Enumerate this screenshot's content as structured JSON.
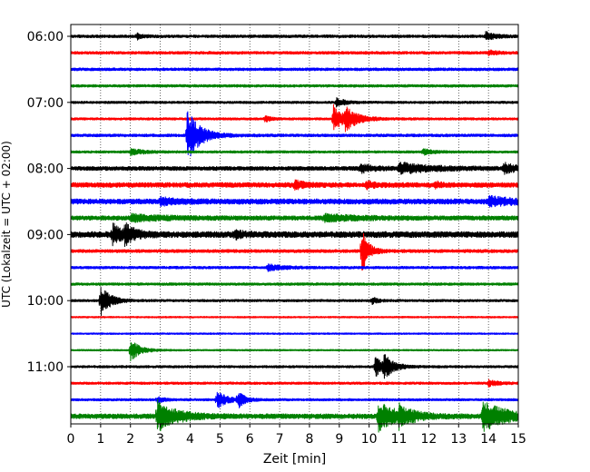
{
  "chart_data": {
    "type": "line",
    "title": "",
    "xlabel": "Zeit  [min]",
    "ylabel": "UTC (Lokalzeit = UTC + 02:00)",
    "xlim": [
      0,
      15
    ],
    "xticks": [
      "0",
      "1",
      "2",
      "3",
      "4",
      "5",
      "6",
      "7",
      "8",
      "9",
      "10",
      "11",
      "12",
      "13",
      "14",
      "15"
    ],
    "grid": "vertical-dotted",
    "row_interval_minutes": 15,
    "row_start": "06:00",
    "ytick_labels": [
      {
        "label": "06:00",
        "row": 0
      },
      {
        "label": "07:00",
        "row": 4
      },
      {
        "label": "08:00",
        "row": 8
      },
      {
        "label": "09:00",
        "row": 12
      },
      {
        "label": "10:00",
        "row": 16
      },
      {
        "label": "11:00",
        "row": 20
      }
    ],
    "row_colors": [
      "#000000",
      "#ff0000",
      "#0000ff",
      "#008000"
    ],
    "rows": [
      {
        "events": [
          {
            "t": 2.2,
            "amp": 0.3,
            "dur": 0.2
          },
          {
            "t": 13.9,
            "amp": 0.4,
            "dur": 0.3
          }
        ],
        "noise": 0.14
      },
      {
        "events": [
          {
            "t": 14.0,
            "amp": 0.2,
            "dur": 0.3
          }
        ],
        "noise": 0.14
      },
      {
        "events": [],
        "noise": 0.14
      },
      {
        "events": [],
        "noise": 0.13
      },
      {
        "events": [
          {
            "t": 8.9,
            "amp": 0.4,
            "dur": 0.3
          }
        ],
        "noise": 0.12
      },
      {
        "events": [
          {
            "t": 6.5,
            "amp": 0.3,
            "dur": 0.2
          },
          {
            "t": 8.8,
            "amp": 1.4,
            "dur": 0.3
          },
          {
            "t": 9.2,
            "amp": 1.0,
            "dur": 0.4
          }
        ],
        "noise": 0.12
      },
      {
        "events": [
          {
            "t": 3.9,
            "amp": 2.6,
            "dur": 0.4
          }
        ],
        "noise": 0.14
      },
      {
        "events": [
          {
            "t": 2.0,
            "amp": 0.3,
            "dur": 0.4
          },
          {
            "t": 11.8,
            "amp": 0.3,
            "dur": 0.3
          }
        ],
        "noise": 0.12
      },
      {
        "events": [
          {
            "t": 9.7,
            "amp": 0.4,
            "dur": 0.4
          },
          {
            "t": 11.0,
            "amp": 0.5,
            "dur": 1.0
          },
          {
            "t": 14.5,
            "amp": 0.5,
            "dur": 0.4
          }
        ],
        "noise": 0.2
      },
      {
        "events": [
          {
            "t": 7.5,
            "amp": 0.4,
            "dur": 0.3
          },
          {
            "t": 9.9,
            "amp": 0.3,
            "dur": 0.3
          },
          {
            "t": 12.2,
            "amp": 0.3,
            "dur": 0.2
          }
        ],
        "noise": 0.24
      },
      {
        "events": [
          {
            "t": 3.0,
            "amp": 0.3,
            "dur": 0.5
          },
          {
            "t": 14.0,
            "amp": 0.4,
            "dur": 0.8
          }
        ],
        "noise": 0.26
      },
      {
        "events": [
          {
            "t": 2.0,
            "amp": 0.3,
            "dur": 1.0
          },
          {
            "t": 8.5,
            "amp": 0.3,
            "dur": 1.0
          }
        ],
        "noise": 0.22
      },
      {
        "events": [
          {
            "t": 1.4,
            "amp": 1.1,
            "dur": 0.3
          },
          {
            "t": 1.8,
            "amp": 0.9,
            "dur": 0.3
          },
          {
            "t": 5.5,
            "amp": 0.3,
            "dur": 0.3
          }
        ],
        "noise": 0.3
      },
      {
        "events": [
          {
            "t": 9.75,
            "amp": 2.3,
            "dur": 0.2
          }
        ],
        "noise": 0.16
      },
      {
        "events": [
          {
            "t": 6.6,
            "amp": 0.3,
            "dur": 0.5
          }
        ],
        "noise": 0.13
      },
      {
        "events": [],
        "noise": 0.13
      },
      {
        "events": [
          {
            "t": 1.0,
            "amp": 1.5,
            "dur": 0.3
          },
          {
            "t": 10.1,
            "amp": 0.3,
            "dur": 0.2
          }
        ],
        "noise": 0.12
      },
      {
        "events": [],
        "noise": 0.08
      },
      {
        "events": [],
        "noise": 0.08
      },
      {
        "events": [
          {
            "t": 2.0,
            "amp": 1.1,
            "dur": 0.3
          }
        ],
        "noise": 0.08
      },
      {
        "events": [
          {
            "t": 10.2,
            "amp": 1.0,
            "dur": 0.3
          },
          {
            "t": 10.5,
            "amp": 0.9,
            "dur": 0.3
          }
        ],
        "noise": 0.12
      },
      {
        "events": [
          {
            "t": 14.0,
            "amp": 0.3,
            "dur": 0.3
          }
        ],
        "noise": 0.12
      },
      {
        "events": [
          {
            "t": 2.9,
            "amp": 0.3,
            "dur": 0.2
          },
          {
            "t": 4.9,
            "amp": 0.9,
            "dur": 0.3
          },
          {
            "t": 5.6,
            "amp": 0.8,
            "dur": 0.2
          }
        ],
        "noise": 0.12
      },
      {
        "events": [
          {
            "t": 2.9,
            "amp": 1.5,
            "dur": 0.6
          },
          {
            "t": 10.3,
            "amp": 1.4,
            "dur": 0.6
          },
          {
            "t": 11.0,
            "amp": 0.8,
            "dur": 0.4
          },
          {
            "t": 13.8,
            "amp": 1.4,
            "dur": 0.8
          }
        ],
        "noise": 0.24
      }
    ]
  }
}
